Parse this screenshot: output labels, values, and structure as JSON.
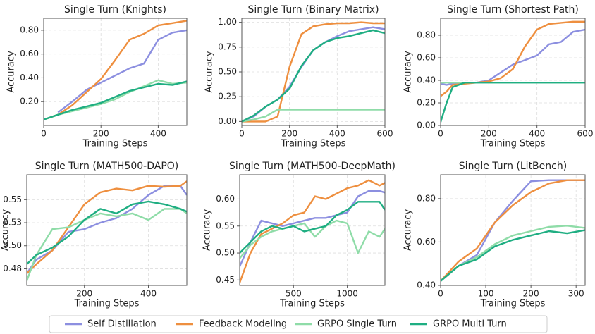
{
  "chart_data": [
    {
      "type": "line",
      "title": "Single Turn (Knights)",
      "x_label": "Training Steps",
      "y_label": "Accuracy",
      "x": [
        0,
        50,
        100,
        150,
        200,
        250,
        300,
        350,
        400,
        450,
        500
      ],
      "xlim": [
        0,
        500
      ],
      "xticks": [
        0,
        200,
        400
      ],
      "ylim": [
        0,
        0.9
      ],
      "yticks": [
        {
          "value": 0.2,
          "label": "0.20"
        },
        {
          "value": 0.4,
          "label": "0.40"
        },
        {
          "value": 0.6,
          "label": "0.60"
        },
        {
          "value": 0.8,
          "label": "0.80"
        }
      ],
      "grid": true,
      "series": [
        {
          "name": "Self Distillation",
          "color": "#8c8fe0",
          "values": [
            null,
            0.11,
            0.2,
            0.3,
            0.36,
            0.42,
            0.48,
            0.52,
            0.72,
            0.78,
            0.8
          ]
        },
        {
          "name": "Feedback Modeling",
          "color": "#ee8f3f",
          "values": [
            0.05,
            0.09,
            0.17,
            0.28,
            0.39,
            0.55,
            0.72,
            0.77,
            0.84,
            0.86,
            0.88
          ]
        },
        {
          "name": "GRPO Single Turn",
          "color": "#8fdca8",
          "values": [
            0.05,
            0.09,
            0.12,
            0.15,
            0.18,
            0.22,
            0.28,
            0.33,
            0.38,
            0.35,
            0.36
          ]
        },
        {
          "name": "GRPO Multi Turn",
          "color": "#1fae82",
          "values": [
            0.05,
            0.09,
            0.13,
            0.16,
            0.19,
            0.24,
            0.29,
            0.32,
            0.35,
            0.34,
            0.37
          ]
        }
      ]
    },
    {
      "type": "line",
      "title": "Single Turn (Binary Matrix)",
      "x_label": "Training Steps",
      "y_label": "Accuracy",
      "x": [
        0,
        50,
        100,
        150,
        200,
        250,
        300,
        350,
        400,
        450,
        500,
        550,
        600
      ],
      "xlim": [
        0,
        600
      ],
      "xticks": [
        0,
        200,
        400,
        600
      ],
      "ylim": [
        -0.04,
        1.04
      ],
      "yticks": [
        {
          "value": 0,
          "label": "0.00"
        },
        {
          "value": 0.25,
          "label": "0.25"
        },
        {
          "value": 0.5,
          "label": "0.50"
        },
        {
          "value": 0.75,
          "label": "0.75"
        },
        {
          "value": 1,
          "label": "1.00"
        }
      ],
      "grid": true,
      "series": [
        {
          "name": "Self Distillation",
          "color": "#8c8fe0",
          "values": [
            0,
            0.05,
            0.15,
            0.22,
            0.35,
            0.55,
            0.72,
            0.8,
            0.86,
            0.91,
            0.93,
            0.95,
            0.93
          ]
        },
        {
          "name": "Feedback Modeling",
          "color": "#ee8f3f",
          "values": [
            0,
            0,
            0,
            0.05,
            0.55,
            0.88,
            0.96,
            0.98,
            0.99,
            0.99,
            1,
            0.99,
            0.99
          ]
        },
        {
          "name": "GRPO Single Turn",
          "color": "#8fdca8",
          "values": [
            0,
            0.02,
            0.05,
            0.12,
            0.12,
            0.12,
            0.12,
            0.12,
            0.12,
            0.12,
            0.12,
            0.12,
            0.12
          ]
        },
        {
          "name": "GRPO Multi Turn",
          "color": "#1fae82",
          "values": [
            0,
            0.06,
            0.15,
            0.22,
            0.33,
            0.56,
            0.72,
            0.8,
            0.84,
            0.86,
            0.89,
            0.92,
            0.89
          ]
        }
      ]
    },
    {
      "type": "line",
      "title": "Single Turn (Shortest Path)",
      "x_label": "Training Steps",
      "y_label": "Accuracy",
      "x": [
        0,
        25,
        50,
        100,
        150,
        200,
        250,
        300,
        350,
        400,
        450,
        500,
        550,
        600
      ],
      "xlim": [
        0,
        600
      ],
      "xticks": [
        0,
        200,
        400,
        600
      ],
      "ylim": [
        0,
        0.95
      ],
      "yticks": [
        {
          "value": 0,
          "label": "0.00"
        },
        {
          "value": 0.2,
          "label": "0.20"
        },
        {
          "value": 0.4,
          "label": "0.40"
        },
        {
          "value": 0.6,
          "label": "0.60"
        },
        {
          "value": 0.8,
          "label": "0.80"
        }
      ],
      "grid": true,
      "series": [
        {
          "name": "Self Distillation",
          "color": "#8c8fe0",
          "values": [
            0.37,
            0.36,
            0.37,
            0.38,
            0.38,
            0.4,
            0.47,
            0.54,
            0.58,
            0.62,
            0.72,
            0.74,
            0.83,
            0.85
          ]
        },
        {
          "name": "Feedback Modeling",
          "color": "#ee8f3f",
          "values": [
            0.26,
            0.3,
            0.36,
            0.37,
            0.38,
            0.39,
            0.42,
            0.5,
            0.7,
            0.85,
            0.9,
            0.91,
            0.92,
            0.92
          ]
        },
        {
          "name": "GRPO Single Turn",
          "color": "#8fdca8",
          "values": [
            0.38,
            0.38,
            0.38,
            0.38,
            0.38,
            0.38,
            0.38,
            0.38,
            0.38,
            0.38,
            0.38,
            0.38,
            0.38,
            0.38
          ]
        },
        {
          "name": "GRPO Multi Turn",
          "color": "#1fae82",
          "values": [
            0.03,
            0.2,
            0.34,
            0.38,
            0.38,
            0.38,
            0.38,
            0.38,
            0.38,
            0.38,
            0.38,
            0.38,
            0.38,
            0.38
          ]
        }
      ]
    },
    {
      "type": "line",
      "title": "Single Turn (MATH500-DAPO)",
      "x_label": "Training Steps",
      "y_label": "Accuracy",
      "x": [
        20,
        50,
        100,
        150,
        200,
        250,
        300,
        350,
        400,
        450,
        500,
        520
      ],
      "xlim": [
        20,
        520
      ],
      "xticks": [
        200,
        400
      ],
      "ylim": [
        0.457,
        0.577
      ],
      "yticks": [
        {
          "value": 0.475,
          "label": "0.48"
        },
        {
          "value": 0.5,
          "label": "0.50"
        },
        {
          "value": 0.525,
          "label": "0.53"
        },
        {
          "value": 0.55,
          "label": "0.55"
        }
      ],
      "grid": true,
      "series": [
        {
          "name": "Self Distillation",
          "color": "#8c8fe0",
          "values": [
            0.47,
            0.485,
            0.495,
            0.515,
            0.518,
            0.525,
            0.53,
            0.54,
            0.555,
            0.565,
            0.565,
            0.555
          ]
        },
        {
          "name": "Feedback Modeling",
          "color": "#ee8f3f",
          "values": [
            0.47,
            0.48,
            0.495,
            0.52,
            0.545,
            0.558,
            0.562,
            0.56,
            0.565,
            0.564,
            0.565,
            0.57
          ]
        },
        {
          "name": "GRPO Single Turn",
          "color": "#8fdca8",
          "values": [
            0.462,
            0.49,
            0.518,
            0.52,
            0.528,
            0.535,
            0.532,
            0.535,
            0.528,
            0.54,
            0.54,
            0.535
          ]
        },
        {
          "name": "GRPO Multi Turn",
          "color": "#1fae82",
          "values": [
            0.48,
            0.49,
            0.498,
            0.51,
            0.528,
            0.54,
            0.535,
            0.545,
            0.548,
            0.545,
            0.54,
            0.537
          ]
        }
      ]
    },
    {
      "type": "line",
      "title": "Single Turn (MATH500-DeepMath)",
      "x_label": "Training Steps",
      "y_label": "Accuracy",
      "x": [
        0,
        100,
        200,
        300,
        400,
        500,
        600,
        700,
        800,
        900,
        1000,
        1100,
        1200,
        1300,
        1350
      ],
      "xlim": [
        0,
        1350
      ],
      "xticks": [
        500,
        1000
      ],
      "ylim": [
        0.44,
        0.645
      ],
      "yticks": [
        0.45,
        {
          "value": 0.5,
          "label": "0.50"
        },
        0.55,
        {
          "value": 0.6,
          "label": "0.60"
        }
      ],
      "grid": true,
      "series": [
        {
          "name": "Self Distillation",
          "color": "#8c8fe0",
          "values": [
            0.475,
            0.52,
            0.56,
            0.555,
            0.55,
            0.555,
            0.56,
            0.565,
            0.565,
            0.57,
            0.575,
            0.605,
            0.615,
            0.615,
            0.612
          ]
        },
        {
          "name": "Feedback Modeling",
          "color": "#ee8f3f",
          "values": [
            0.445,
            0.5,
            0.535,
            0.545,
            0.555,
            0.57,
            0.575,
            0.605,
            0.6,
            0.61,
            0.62,
            0.625,
            0.635,
            0.625,
            0.63
          ]
        },
        {
          "name": "GRPO Single Turn",
          "color": "#8fdca8",
          "values": [
            0.49,
            0.515,
            0.53,
            0.54,
            0.545,
            0.55,
            0.555,
            0.53,
            0.55,
            0.56,
            0.555,
            0.5,
            0.54,
            0.53,
            0.545
          ]
        },
        {
          "name": "GRPO Multi Turn",
          "color": "#1fae82",
          "values": [
            0.5,
            0.52,
            0.54,
            0.55,
            0.545,
            0.55,
            0.54,
            0.545,
            0.55,
            0.57,
            0.58,
            0.595,
            0.595,
            0.595,
            0.58
          ]
        }
      ]
    },
    {
      "type": "line",
      "title": "Single Turn (LitBench)",
      "x_label": "Training Steps",
      "y_label": "Accuracy",
      "x": [
        0,
        40,
        80,
        120,
        160,
        200,
        240,
        280,
        320
      ],
      "xlim": [
        0,
        320
      ],
      "xticks": [
        0,
        100,
        200,
        300
      ],
      "ylim": [
        0.4,
        0.91
      ],
      "yticks": [
        {
          "value": 0.4,
          "label": "0.40"
        },
        {
          "value": 0.6,
          "label": "0.60"
        },
        {
          "value": 0.8,
          "label": "0.80"
        }
      ],
      "grid": true,
      "series": [
        {
          "name": "Self Distillation",
          "color": "#8c8fe0",
          "values": [
            0.42,
            0.49,
            0.54,
            0.69,
            0.79,
            0.88,
            0.885,
            0.885,
            0.885
          ]
        },
        {
          "name": "Feedback Modeling",
          "color": "#ee8f3f",
          "values": [
            0.42,
            0.51,
            0.57,
            0.69,
            0.77,
            0.83,
            0.87,
            0.885,
            0.885
          ]
        },
        {
          "name": "GRPO Single Turn",
          "color": "#8fdca8",
          "values": [
            0.42,
            0.49,
            0.53,
            0.59,
            0.63,
            0.65,
            0.67,
            0.675,
            0.665
          ]
        },
        {
          "name": "GRPO Multi Turn",
          "color": "#1fae82",
          "values": [
            0.42,
            0.49,
            0.52,
            0.58,
            0.61,
            0.63,
            0.65,
            0.64,
            0.655
          ]
        }
      ]
    }
  ]
}
